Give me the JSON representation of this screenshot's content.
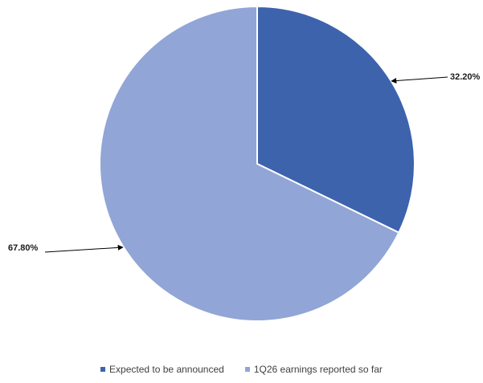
{
  "chart_data": {
    "type": "pie",
    "title": "",
    "categories": [
      "Expected to be announced",
      "1Q26 earnings reported so far"
    ],
    "values": [
      32.2,
      67.8
    ],
    "value_labels": [
      "32.20%",
      "67.80%"
    ],
    "colors": [
      "#3d63ad",
      "#91a5d6"
    ],
    "start_angle_deg": 0,
    "direction": "clockwise",
    "legend_position": "bottom"
  }
}
